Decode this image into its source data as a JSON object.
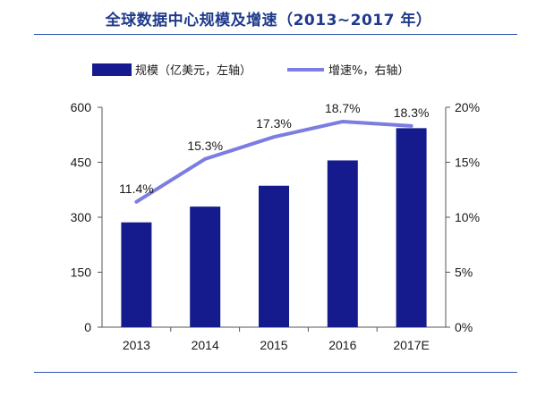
{
  "title": "全球数据中心规模及增速（2013~2017 年）",
  "colors": {
    "bar": "#151b8c",
    "line": "#7b7de0",
    "rule": "#2f55b5",
    "title": "#1f3a8c"
  },
  "chart_data": {
    "type": "bar",
    "categories": [
      "2013",
      "2014",
      "2015",
      "2016",
      "2017E"
    ],
    "series": [
      {
        "name": "规模（亿美元，左轴）",
        "type": "bar",
        "axis": "left",
        "values": [
          286,
          329,
          386,
          455,
          543
        ]
      },
      {
        "name": "增速%，右轴）",
        "type": "line",
        "axis": "right",
        "values": [
          11.4,
          15.3,
          17.3,
          18.7,
          18.3
        ],
        "labels": [
          "11.4%",
          "15.3%",
          "17.3%",
          "18.7%",
          "18.3%"
        ]
      }
    ],
    "left_axis": {
      "ylim": [
        0,
        600
      ],
      "ticks": [
        "0",
        "150",
        "300",
        "450",
        "600"
      ]
    },
    "right_axis": {
      "ylim": [
        0,
        20
      ],
      "ticks": [
        "0%",
        "5%",
        "10%",
        "15%",
        "20%"
      ]
    },
    "grid": false,
    "legend_position": "top"
  }
}
